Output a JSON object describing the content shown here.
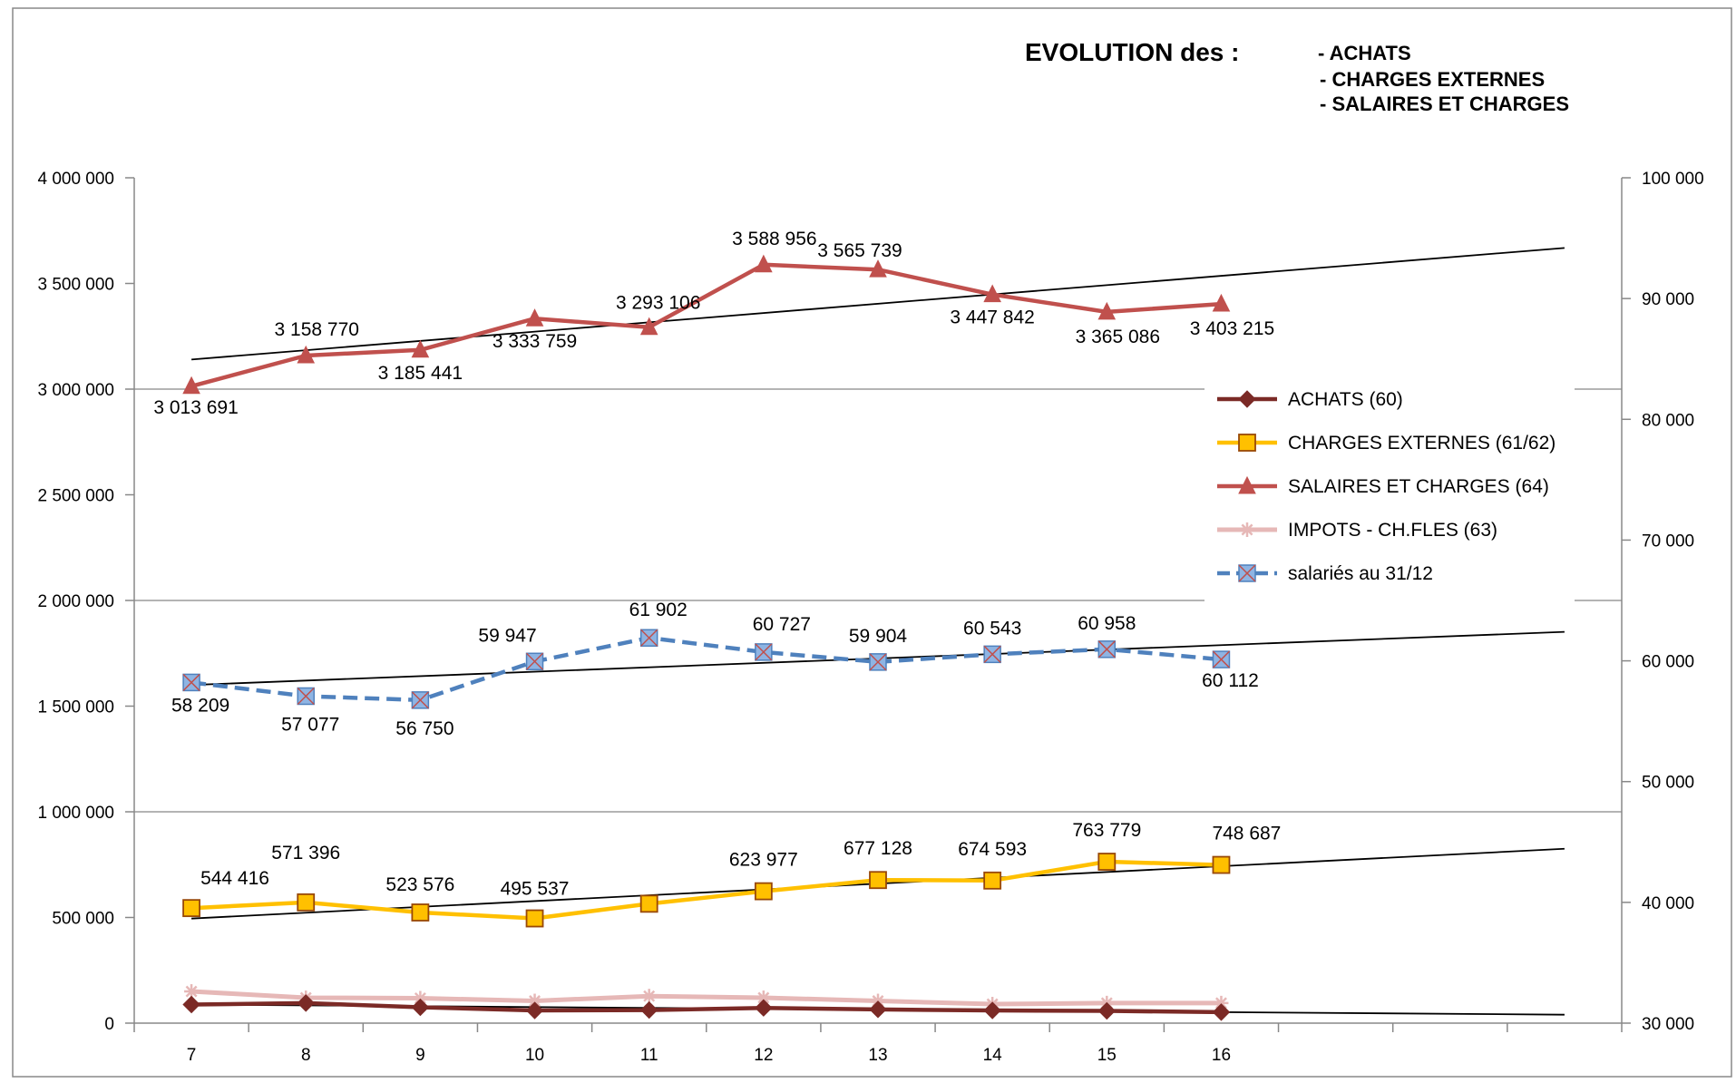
{
  "chart_data": {
    "type": "line",
    "title": "EVOLUTION  des :",
    "title_items": [
      "- ACHATS",
      "- CHARGES EXTERNES",
      "- SALAIRES ET CHARGES"
    ],
    "x": [
      "7",
      "8",
      "9",
      "10",
      "11",
      "12",
      "13",
      "14",
      "15",
      "16"
    ],
    "x_extra_slots": 3,
    "y_left": {
      "min": 0,
      "max": 4000000,
      "ticks": [
        {
          "value": 0,
          "label": "0"
        },
        {
          "value": 500000,
          "label": "500 000"
        },
        {
          "value": 1000000,
          "label": "1 000 000"
        },
        {
          "value": 1500000,
          "label": "1 500 000"
        },
        {
          "value": 2000000,
          "label": "2 000 000"
        },
        {
          "value": 2500000,
          "label": "2 500 000"
        },
        {
          "value": 3000000,
          "label": "3 000 000"
        },
        {
          "value": 3500000,
          "label": "3 500 000"
        },
        {
          "value": 4000000,
          "label": "4 000 000"
        }
      ]
    },
    "y_right": {
      "min": 30000,
      "max": 100000,
      "ticks": [
        {
          "value": 30000,
          "label": "30 000"
        },
        {
          "value": 40000,
          "label": "40 000"
        },
        {
          "value": 50000,
          "label": "50 000"
        },
        {
          "value": 60000,
          "label": "60 000"
        },
        {
          "value": 70000,
          "label": "70 000"
        },
        {
          "value": 80000,
          "label": "80 000"
        },
        {
          "value": 90000,
          "label": "90 000"
        },
        {
          "value": 100000,
          "label": "100 000"
        }
      ]
    },
    "gridlines": [
      1000000,
      2000000,
      3000000
    ],
    "series": [
      {
        "name": "ACHATS (60)",
        "axis": "left",
        "color": "#7b2a26",
        "marker": "diamond",
        "dash": false,
        "values": [
          88000,
          95000,
          75000,
          60000,
          62000,
          72000,
          65000,
          60000,
          58000,
          52000
        ],
        "labels": [],
        "trend": [
          88000,
          40000
        ]
      },
      {
        "name": "CHARGES EXTERNES (61/62)",
        "axis": "left",
        "color": "#ffc000",
        "marker": "square",
        "dash": false,
        "values": [
          544416,
          571396,
          523576,
          495537,
          565000,
          623977,
          677128,
          674593,
          763779,
          748687
        ],
        "labels": [
          "544 416",
          "571 396",
          "523 576",
          "495 537",
          null,
          "623 977",
          "677 128",
          "674 593",
          "763 779",
          "748 687"
        ],
        "trend": [
          495000,
          825000
        ]
      },
      {
        "name": "SALAIRES ET CHARGES (64)",
        "axis": "left",
        "color": "#c0504d",
        "marker": "triangle",
        "dash": false,
        "values": [
          3013691,
          3158770,
          3185441,
          3333759,
          3293106,
          3588956,
          3565739,
          3447842,
          3365086,
          3403215
        ],
        "labels": [
          "3 013 691",
          "3 158 770",
          "3 185 441",
          "3 333 759",
          "3 293 106",
          "3 588 956",
          "3 565 739",
          "3 447 842",
          "3 365 086",
          "3 403 215"
        ],
        "trend": [
          3140000,
          3668000
        ]
      },
      {
        "name": "IMPOTS - CH.FLES  (63)",
        "axis": "left",
        "color": "#e6b8b7",
        "marker": "star",
        "dash": false,
        "values": [
          150000,
          120000,
          118000,
          105000,
          128000,
          120000,
          105000,
          90000,
          95000,
          95000
        ],
        "labels": [],
        "trend": null
      },
      {
        "name": "salariés au 31/12",
        "axis": "right",
        "color": "#4f81bd",
        "marker": "xbox",
        "dash": true,
        "values": [
          58209,
          57077,
          56750,
          59947,
          61902,
          60727,
          59904,
          60543,
          60958,
          60112
        ],
        "labels": [
          "58 209",
          "57 077",
          "56 750",
          "59 947",
          "61 902",
          "60 727",
          "59 904",
          "60 543",
          "60 958",
          "60 112"
        ],
        "trend": [
          58000,
          62400
        ]
      }
    ],
    "legend": "right-middle"
  }
}
